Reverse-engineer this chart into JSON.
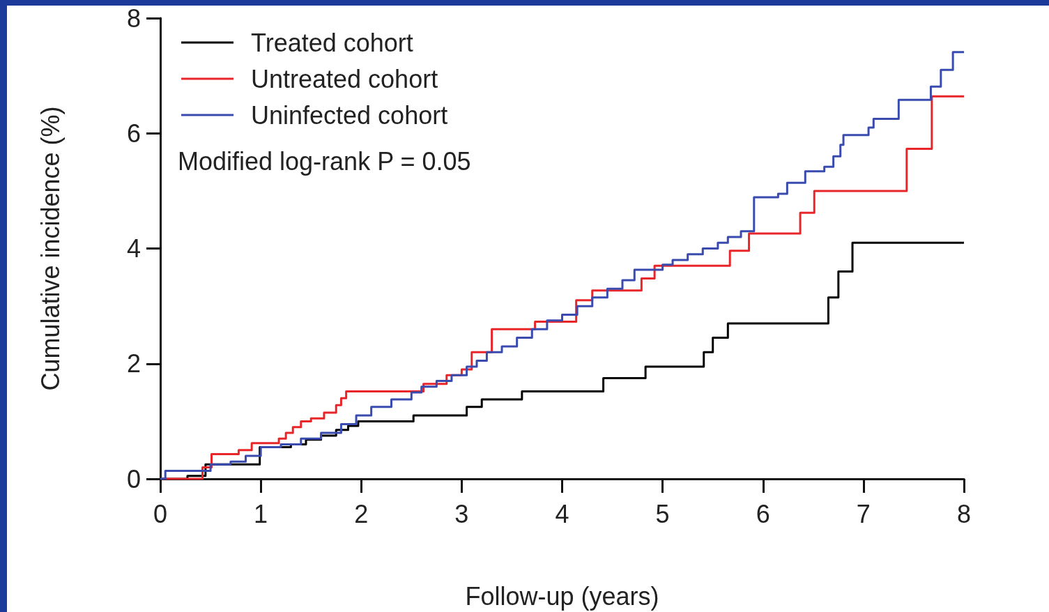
{
  "chart_data": {
    "type": "step",
    "xlabel": "Follow-up (years)",
    "ylabel": "Cumulative incidence (%)",
    "xlim": [
      0,
      8
    ],
    "ylim": [
      0,
      8
    ],
    "xticks": [
      0,
      1,
      2,
      3,
      4,
      5,
      6,
      7,
      8
    ],
    "yticks": [
      0,
      2,
      4,
      6,
      8
    ],
    "grid": false,
    "legend": "top left",
    "marker": "none",
    "line_style": "solid",
    "annotations": [
      "Modified log-rank P = 0.05"
    ],
    "series": [
      {
        "name": "Treated cohort",
        "color": "#000000",
        "x": [
          0,
          0.27,
          0.45,
          0.99,
          1.3,
          1.45,
          1.6,
          1.75,
          1.87,
          1.97,
          2.52,
          3.05,
          3.2,
          3.6,
          4.41,
          4.83,
          5.41,
          5.5,
          5.65,
          6.65,
          6.75,
          6.89,
          8
        ],
        "values": [
          0,
          0.05,
          0.25,
          0.55,
          0.6,
          0.68,
          0.75,
          0.85,
          0.92,
          1.0,
          1.1,
          1.25,
          1.38,
          1.52,
          1.75,
          1.95,
          2.2,
          2.45,
          2.7,
          3.15,
          3.6,
          4.1,
          4.1
        ]
      },
      {
        "name": "Untreated cohort",
        "color": "#e8262a",
        "x": [
          0,
          0.42,
          0.51,
          0.78,
          0.91,
          1.18,
          1.25,
          1.32,
          1.4,
          1.5,
          1.63,
          1.75,
          1.8,
          1.85,
          2.62,
          2.85,
          3.0,
          3.1,
          3.3,
          3.73,
          4.14,
          4.3,
          4.79,
          4.92,
          5.67,
          5.86,
          6.37,
          6.51,
          7.43,
          7.68,
          8
        ],
        "values": [
          0,
          0.2,
          0.43,
          0.5,
          0.62,
          0.7,
          0.8,
          0.9,
          1.0,
          1.05,
          1.15,
          1.28,
          1.4,
          1.52,
          1.65,
          1.8,
          1.9,
          2.2,
          2.6,
          2.73,
          3.1,
          3.27,
          3.48,
          3.7,
          3.96,
          4.26,
          4.62,
          5.0,
          5.73,
          6.64,
          6.64
        ]
      },
      {
        "name": "Uninfected cohort",
        "color": "#3a4bb0",
        "x": [
          0,
          0.05,
          0.5,
          0.7,
          0.85,
          1.0,
          1.2,
          1.4,
          1.6,
          1.8,
          1.95,
          2.1,
          2.3,
          2.5,
          2.6,
          2.75,
          2.9,
          3.05,
          3.15,
          3.25,
          3.4,
          3.55,
          3.7,
          3.85,
          4.0,
          4.15,
          4.3,
          4.45,
          4.6,
          4.72,
          5.0,
          5.1,
          5.25,
          5.4,
          5.55,
          5.65,
          5.78,
          5.91,
          6.15,
          6.24,
          6.42,
          6.61,
          6.7,
          6.77,
          6.8,
          7.05,
          7.1,
          7.35,
          7.67,
          7.77,
          7.89,
          8
        ],
        "values": [
          0,
          0.14,
          0.25,
          0.3,
          0.4,
          0.55,
          0.6,
          0.7,
          0.8,
          0.95,
          1.1,
          1.25,
          1.38,
          1.5,
          1.6,
          1.7,
          1.8,
          1.95,
          2.05,
          2.2,
          2.3,
          2.45,
          2.6,
          2.75,
          2.85,
          3.0,
          3.15,
          3.3,
          3.45,
          3.63,
          3.72,
          3.8,
          3.9,
          4.0,
          4.1,
          4.2,
          4.3,
          4.89,
          4.95,
          5.14,
          5.34,
          5.42,
          5.6,
          5.8,
          5.97,
          6.1,
          6.25,
          6.58,
          6.81,
          7.1,
          7.41,
          7.41
        ]
      }
    ]
  }
}
